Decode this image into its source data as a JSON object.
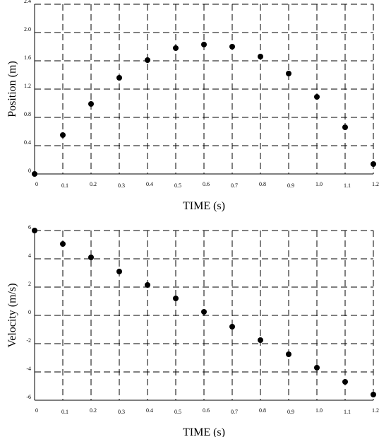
{
  "chart_data": [
    {
      "type": "scatter",
      "xlabel": "TIME (s)",
      "ylabel": "Position (m)",
      "x": [
        0,
        0.1,
        0.2,
        0.3,
        0.4,
        0.5,
        0.6,
        0.7,
        0.8,
        0.9,
        1.0,
        1.1,
        1.2
      ],
      "values": [
        0,
        0.55,
        0.99,
        1.36,
        1.61,
        1.78,
        1.83,
        1.8,
        1.66,
        1.42,
        1.09,
        0.66,
        0.14
      ],
      "color": "#000000",
      "grid": true,
      "xlim": [
        0,
        1.2
      ],
      "ylim": [
        0,
        2.4
      ],
      "xticks": [
        0,
        0.1,
        0.2,
        0.3,
        0.4,
        0.5,
        0.6,
        0.7,
        0.8,
        0.9,
        {
          "value": 1,
          "label": "1.0"
        },
        1.1,
        1.2
      ],
      "yticks": [
        0,
        0.4,
        0.8,
        1.2,
        1.6,
        {
          "value": 2,
          "label": "2.0"
        },
        2.4
      ]
    },
    {
      "type": "scatter",
      "xlabel": "TIME (s)",
      "ylabel": "Velocity (m/s)",
      "x": [
        0,
        0.1,
        0.2,
        0.3,
        0.4,
        0.5,
        0.6,
        0.7,
        0.8,
        0.9,
        1.0,
        1.1,
        1.2
      ],
      "values": [
        6,
        5.05,
        4.1,
        3.1,
        2.15,
        1.2,
        0.25,
        -0.8,
        -1.75,
        -2.75,
        -3.7,
        -4.7,
        -5.6
      ],
      "color": "#000000",
      "grid": true,
      "xlim": [
        0,
        1.2
      ],
      "ylim": [
        -6,
        6
      ],
      "xticks": [
        0,
        0.1,
        0.2,
        0.3,
        0.4,
        0.5,
        0.6,
        0.7,
        0.8,
        0.9,
        {
          "value": 1,
          "label": "1.0"
        },
        1.1,
        1.2
      ],
      "yticks": [
        -6,
        -4,
        -2,
        0,
        2,
        4,
        6
      ]
    }
  ]
}
